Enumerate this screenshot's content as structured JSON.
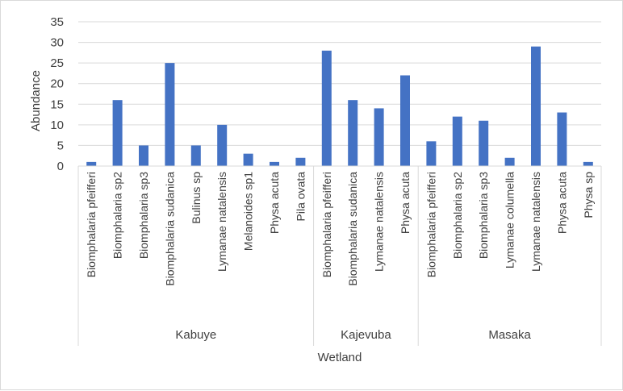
{
  "chart_data": {
    "type": "bar",
    "xlabel": "Wetland",
    "ylabel": "Abundance",
    "ylim": [
      0,
      35
    ],
    "yticks": [
      0,
      5,
      10,
      15,
      20,
      25,
      30,
      35
    ],
    "grid": true,
    "legend": "none",
    "bar_color": "#4472c4",
    "groups": [
      {
        "name": "Kabuye",
        "categories": [
          "Biomphalaria pfeifferi",
          "Biomphalaria sp2",
          "Biomphalaria sp3",
          "Biomphalaria sudanica",
          "Bulinus sp",
          "Lymanae natalensis",
          "Melanoides sp1",
          "Physa acuta",
          "Pila ovata"
        ],
        "values": [
          1,
          16,
          5,
          25,
          5,
          10,
          3,
          1,
          2
        ]
      },
      {
        "name": "Kajevuba",
        "categories": [
          "Biomphalaria pfeifferi",
          "Biomphalaria sudanica",
          "Lymanae natalensis",
          "Physa acuta"
        ],
        "values": [
          28,
          16,
          14,
          22
        ]
      },
      {
        "name": "Masaka",
        "categories": [
          "Biomphalaria pfeifferi",
          "Biomphalaria sp2",
          "Biomphalaria sp3",
          "Lymanae columella",
          "Lymanae natalensis",
          "Physa acuta",
          "Physa sp"
        ],
        "values": [
          6,
          12,
          11,
          2,
          29,
          13,
          1
        ]
      }
    ]
  }
}
